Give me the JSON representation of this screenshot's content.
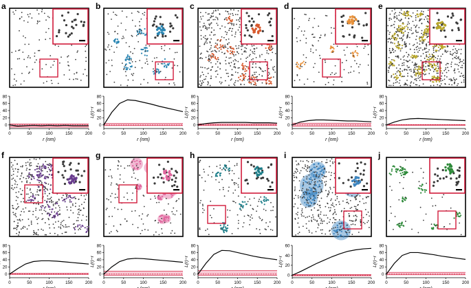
{
  "figure": {
    "axes": {
      "xlabel": "r (nm)",
      "ylabel": "L(r)−r",
      "xticks": [
        0,
        50,
        100,
        150,
        200
      ],
      "xlim": [
        0,
        200
      ]
    },
    "colors": {
      "point": "#3a3a3a",
      "inset_frame": "#d11a3a",
      "envelope_fill": "#f4a5b8",
      "envelope_line": "#d11a3a",
      "curve": "#000000"
    }
  },
  "chart_data": [
    {
      "panel_label": "a",
      "cluster_color": "#3a3a3a",
      "density": 140,
      "clusters": 0,
      "inset_corner": "top-right",
      "roi_corner": "center-bottom",
      "type": "line",
      "xlabel": "r (nm)",
      "ylabel": "L(r)−r",
      "yticks": [
        0,
        20,
        40,
        60,
        80
      ],
      "ylim": [
        -10,
        80
      ],
      "xlim": [
        0,
        200
      ],
      "x": [
        0,
        20,
        40,
        60,
        80,
        100,
        120,
        140,
        160,
        180,
        200
      ],
      "curve": [
        0,
        -3,
        -2,
        -1,
        -2,
        -1,
        -2,
        -1,
        -2,
        -2,
        -2
      ],
      "envelope": {
        "upper": [
          3,
          3,
          3,
          3,
          3,
          3,
          3,
          3,
          3,
          3,
          3
        ],
        "lower": [
          -6,
          -6,
          -6,
          -6,
          -6,
          -6,
          -6,
          -6,
          -6,
          -6,
          -6
        ]
      }
    },
    {
      "panel_label": "b",
      "cluster_color": "#2b86b3",
      "density": 150,
      "clusters": 10,
      "inset_corner": "top-right",
      "roi_corner": "bottom-right",
      "type": "line",
      "xlabel": "r (nm)",
      "ylabel": "L(r)−r",
      "yticks": [
        0,
        20,
        40,
        60,
        80
      ],
      "ylim": [
        -10,
        80
      ],
      "xlim": [
        0,
        200
      ],
      "x": [
        0,
        20,
        40,
        60,
        80,
        100,
        120,
        140,
        160,
        180,
        200
      ],
      "curve": [
        0,
        35,
        60,
        70,
        68,
        63,
        58,
        52,
        47,
        42,
        37
      ],
      "envelope": {
        "upper": [
          4,
          4,
          4,
          4,
          4,
          4,
          4,
          4,
          4,
          4,
          4
        ],
        "lower": [
          -2,
          -2,
          -2,
          -2,
          -2,
          -2,
          -2,
          -2,
          -2,
          -2,
          -2
        ]
      }
    },
    {
      "panel_label": "c",
      "cluster_color": "#d85a2e",
      "density": 480,
      "clusters": 14,
      "inset_corner": "top-right",
      "roi_corner": "bottom-right",
      "type": "line",
      "xlabel": "r (nm)",
      "ylabel": "L(r)−r",
      "yticks": [
        0,
        20,
        40,
        60,
        80
      ],
      "ylim": [
        -10,
        80
      ],
      "xlim": [
        0,
        200
      ],
      "x": [
        0,
        20,
        40,
        60,
        80,
        100,
        120,
        140,
        160,
        180,
        200
      ],
      "curve": [
        0,
        4,
        6,
        7,
        7,
        7,
        7,
        6,
        6,
        6,
        5
      ],
      "envelope": {
        "upper": [
          3,
          3,
          3,
          3,
          3,
          3,
          3,
          3,
          3,
          3,
          3
        ],
        "lower": [
          -2,
          -2,
          -2,
          -2,
          -2,
          -2,
          -2,
          -2,
          -2,
          -2,
          -2
        ]
      }
    },
    {
      "panel_label": "d",
      "cluster_color": "#e8913a",
      "density": 140,
      "clusters": 6,
      "inset_corner": "top-right",
      "roi_corner": "center-bottom",
      "type": "line",
      "xlabel": "r (nm)",
      "ylabel": "L(r)−r",
      "yticks": [
        0,
        20,
        40,
        60,
        80
      ],
      "ylim": [
        -10,
        80
      ],
      "xlim": [
        0,
        200
      ],
      "x": [
        0,
        20,
        40,
        60,
        80,
        100,
        120,
        140,
        160,
        180,
        200
      ],
      "curve": [
        0,
        8,
        12,
        14,
        14,
        13,
        12,
        11,
        11,
        10,
        9
      ],
      "envelope": {
        "upper": [
          5,
          5,
          5,
          5,
          5,
          5,
          5,
          5,
          5,
          5,
          5
        ],
        "lower": [
          -3,
          -3,
          -3,
          -3,
          -3,
          -3,
          -3,
          -3,
          -3,
          -3,
          -3
        ]
      }
    },
    {
      "panel_label": "e",
      "cluster_color": "#b8a628",
      "density": 650,
      "clusters": 30,
      "inset_corner": "top-right",
      "roi_corner": "bottom-center",
      "type": "line",
      "xlabel": "r (nm)",
      "ylabel": "L(r)−r",
      "yticks": [
        0,
        20,
        40,
        60,
        80
      ],
      "ylim": [
        -10,
        80
      ],
      "xlim": [
        0,
        200
      ],
      "x": [
        0,
        20,
        40,
        60,
        80,
        100,
        120,
        140,
        160,
        180,
        200
      ],
      "curve": [
        0,
        8,
        14,
        17,
        18,
        17,
        16,
        15,
        14,
        13,
        12
      ],
      "envelope": {
        "upper": [
          1,
          1,
          1,
          1,
          1,
          1,
          1,
          1,
          1,
          1,
          1
        ],
        "lower": [
          -1,
          -1,
          -1,
          -1,
          -1,
          -1,
          -1,
          -1,
          -1,
          -1,
          -1
        ]
      }
    },
    {
      "panel_label": "f",
      "cluster_color": "#6a3d8f",
      "density": 460,
      "clusters": 14,
      "inset_corner": "top-right",
      "roi_corner": "center-left",
      "type": "line",
      "xlabel": "r (nm)",
      "ylabel": "L(r)−r",
      "yticks": [
        0,
        20,
        40,
        60,
        80
      ],
      "ylim": [
        -10,
        80
      ],
      "xlim": [
        0,
        200
      ],
      "x": [
        0,
        20,
        40,
        60,
        80,
        100,
        120,
        140,
        160,
        180,
        200
      ],
      "curve": [
        0,
        15,
        28,
        35,
        37,
        37,
        36,
        34,
        32,
        30,
        28
      ],
      "envelope": {
        "upper": [
          2,
          2,
          2,
          2,
          2,
          2,
          2,
          2,
          2,
          2,
          2
        ],
        "lower": [
          -1,
          -1,
          -1,
          -1,
          -1,
          -1,
          -1,
          -1,
          -1,
          -1,
          -1
        ]
      }
    },
    {
      "panel_label": "g",
      "cluster_color": "#e0669e",
      "density": 140,
      "clusters": 9,
      "inset_corner": "top-right",
      "roi_corner": "center-left",
      "type": "line",
      "xlabel": "r (nm)",
      "ylabel": "L(r)−r",
      "yticks": [
        0,
        20,
        40,
        60,
        80
      ],
      "ylim": [
        -10,
        80
      ],
      "xlim": [
        0,
        200
      ],
      "x": [
        0,
        20,
        40,
        60,
        80,
        100,
        120,
        140,
        160,
        180,
        200
      ],
      "curve": [
        0,
        20,
        35,
        42,
        44,
        43,
        41,
        39,
        37,
        35,
        33
      ],
      "envelope": {
        "upper": [
          8,
          8,
          8,
          8,
          8,
          8,
          8,
          8,
          8,
          8,
          8
        ],
        "lower": [
          -3,
          -3,
          -3,
          -3,
          -3,
          -3,
          -3,
          -3,
          -3,
          -3,
          -3
        ]
      }
    },
    {
      "panel_label": "h",
      "cluster_color": "#1e7f8a",
      "density": 150,
      "clusters": 8,
      "inset_corner": "top-right",
      "roi_corner": "bottom-left",
      "type": "line",
      "xlabel": "r (nm)",
      "ylabel": "L(r)−r",
      "yticks": [
        0,
        20,
        40,
        60,
        80
      ],
      "ylim": [
        -10,
        80
      ],
      "xlim": [
        0,
        200
      ],
      "x": [
        0,
        20,
        40,
        60,
        80,
        100,
        120,
        140,
        160,
        180,
        200
      ],
      "curve": [
        0,
        30,
        55,
        66,
        65,
        60,
        55,
        50,
        46,
        43,
        40
      ],
      "envelope": {
        "upper": [
          10,
          10,
          10,
          10,
          10,
          10,
          10,
          10,
          10,
          10,
          10
        ],
        "lower": [
          -3,
          -3,
          -3,
          -3,
          -3,
          -3,
          -3,
          -3,
          -3,
          -3,
          -3
        ]
      }
    },
    {
      "panel_label": "i",
      "cluster_color": "#3f86c0",
      "density": 450,
      "clusters": 7,
      "inset_corner": "top-right",
      "roi_corner": "bottom-right",
      "type": "line",
      "xlabel": "r (nm)",
      "ylabel": "L(r)−r",
      "yticks": [
        0,
        20,
        40,
        60
      ],
      "ylim": [
        -5,
        60
      ],
      "xlim": [
        0,
        200
      ],
      "x": [
        0,
        20,
        40,
        60,
        80,
        100,
        120,
        140,
        160,
        180,
        200
      ],
      "curve": [
        0,
        7,
        15,
        23,
        30,
        37,
        43,
        48,
        51,
        53,
        54
      ],
      "envelope": {
        "upper": [
          1,
          1,
          1,
          1,
          1,
          1,
          1,
          1,
          1,
          1,
          1
        ],
        "lower": [
          -1,
          -1,
          -1,
          -1,
          -1,
          -1,
          -1,
          -1,
          -1,
          -1,
          -1
        ]
      }
    },
    {
      "panel_label": "j",
      "cluster_color": "#2e8a3a",
      "density": 60,
      "clusters": 10,
      "inset_corner": "top-right",
      "roi_corner": "bottom-right",
      "type": "line",
      "xlabel": "r (nm)",
      "ylabel": "L(r)−r",
      "yticks": [
        0,
        20,
        40,
        60,
        80
      ],
      "ylim": [
        -10,
        80
      ],
      "xlim": [
        0,
        200
      ],
      "x": [
        0,
        20,
        40,
        60,
        80,
        100,
        120,
        140,
        160,
        180,
        200
      ],
      "curve": [
        0,
        30,
        52,
        60,
        60,
        57,
        54,
        50,
        47,
        44,
        41
      ],
      "envelope": {
        "upper": [
          5,
          5,
          5,
          5,
          5,
          5,
          5,
          5,
          5,
          5,
          5
        ],
        "lower": [
          -2,
          -2,
          -2,
          -2,
          -2,
          -2,
          -2,
          -2,
          -2,
          -2,
          -2
        ]
      }
    }
  ]
}
